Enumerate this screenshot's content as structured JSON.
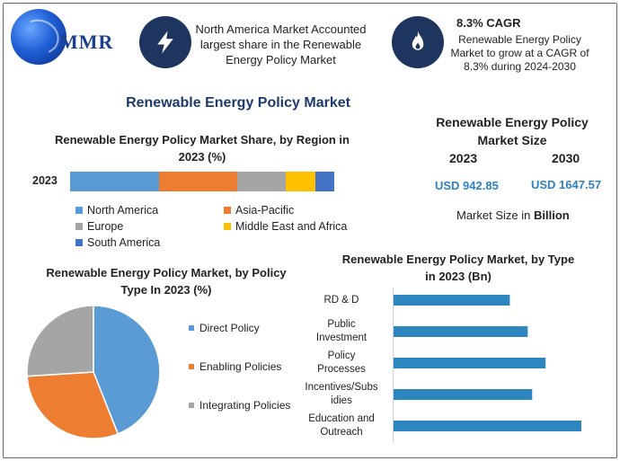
{
  "logo": {
    "text": "MMR"
  },
  "header": {
    "info1": {
      "icon": "lightning-icon",
      "text": "North America Market Accounted largest share in the Renewable Energy Policy Market"
    },
    "info2": {
      "icon": "flame-icon",
      "title": "8.3% CAGR",
      "text": "Renewable Energy Policy Market to grow at a CAGR of 8.3% during 2024-2030"
    }
  },
  "main_title": "Renewable Energy Policy Market",
  "market_size": {
    "title": "Renewable Energy Policy Market Size",
    "year1": "2023",
    "year2": "2030",
    "value1": "USD 942.85",
    "value2": "USD 1647.57",
    "note_prefix": "Market Size in ",
    "note_unit": "Billion"
  },
  "colors": {
    "north_america": "#5b9bd5",
    "asia_pacific": "#ed7d31",
    "europe": "#a5a5a5",
    "middle_east_africa": "#ffc000",
    "south_america": "#4472c4",
    "bar": "#2e86c1",
    "header_circle": "#1e3560"
  },
  "chart_data": [
    {
      "type": "bar",
      "orientation": "horizontal-stacked",
      "title": "Renewable Energy Policy Market Share, by Region in 2023 (%)",
      "categories": [
        "2023"
      ],
      "series": [
        {
          "name": "North America",
          "values": [
            33
          ]
        },
        {
          "name": "Asia-Pacific",
          "values": [
            29
          ]
        },
        {
          "name": "Europe",
          "values": [
            18
          ]
        },
        {
          "name": "Middle East and Africa",
          "values": [
            11
          ]
        },
        {
          "name": "South America",
          "values": [
            7
          ]
        }
      ],
      "xlim": [
        0,
        100
      ],
      "legend": "bottom"
    },
    {
      "type": "pie",
      "title": "Renewable Energy Policy Market, by Policy Type In 2023 (%)",
      "labels": [
        "Direct Policy",
        "Enabling Policies",
        "Integrating Policies"
      ],
      "values": [
        44,
        30,
        26
      ],
      "colors": [
        "#5b9bd5",
        "#ed7d31",
        "#a5a5a5"
      ],
      "legend": "right"
    },
    {
      "type": "bar",
      "orientation": "horizontal",
      "title": "Renewable Energy Policy Market, by Type in 2023 (Bn)",
      "categories": [
        "RD & D",
        "Public Investment",
        "Policy Processes",
        "Incentives/Subsidies",
        "Education and Outreach"
      ],
      "category_display": [
        [
          "RD & D"
        ],
        [
          "Public",
          "Investment"
        ],
        [
          "Policy",
          "Processes"
        ],
        [
          "Incentives/Subs",
          "idies"
        ],
        [
          "Education and",
          "Outreach"
        ]
      ],
      "values": [
        130,
        150,
        170,
        155,
        210
      ],
      "xlim": [
        0,
        215
      ]
    }
  ]
}
